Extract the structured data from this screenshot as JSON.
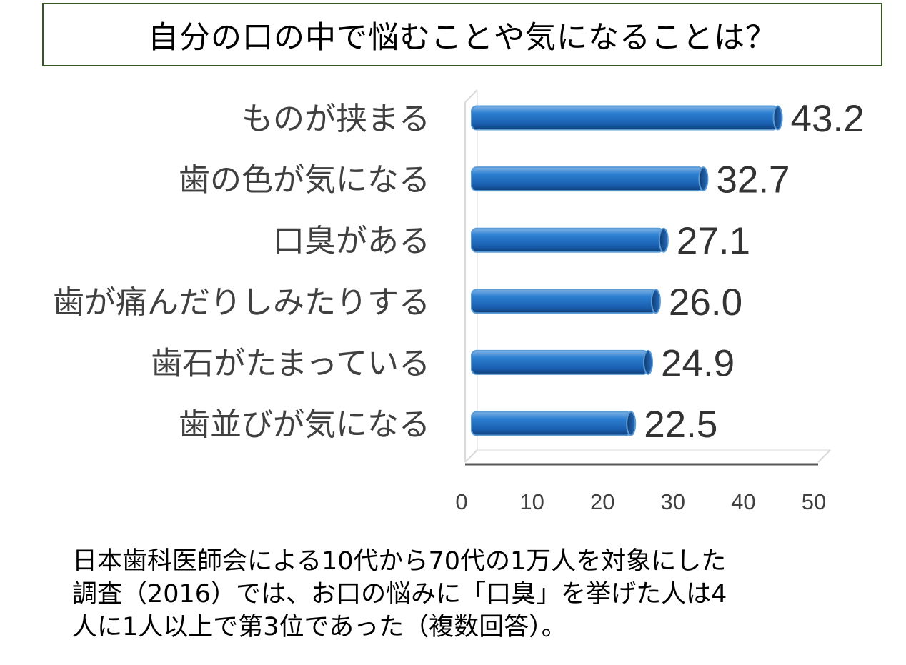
{
  "title": "自分の口の中で悩むことや気になることは？",
  "chart_data": {
    "type": "bar",
    "orientation": "horizontal",
    "categories": [
      "ものが挟まる",
      "歯の色が気になる",
      "口臭がある",
      "歯が痛んだりしみたりする",
      "歯石がたまっている",
      "歯並びが気になる"
    ],
    "values": [
      43.2,
      32.7,
      27.1,
      26.0,
      24.9,
      22.5
    ],
    "value_labels": [
      "43.2",
      "32.7",
      "27.1",
      "26.0",
      "24.9",
      "22.5"
    ],
    "highlight_index": 2,
    "highlight_color": "#ff0000",
    "bar_color": "#1f6fc4",
    "xlim": [
      0,
      50
    ],
    "xticks": [
      "0",
      "10",
      "20",
      "30",
      "40",
      "50"
    ],
    "grid": false,
    "style": "3d-cylinder"
  },
  "note_lines": [
    "日本歯科医師会による10代から70代の1万人を対象にした",
    "調査（2016）では、お口の悩みに「口臭」を挙げた人は4",
    "人に1人以上で第3位であった（複数回答）。"
  ]
}
